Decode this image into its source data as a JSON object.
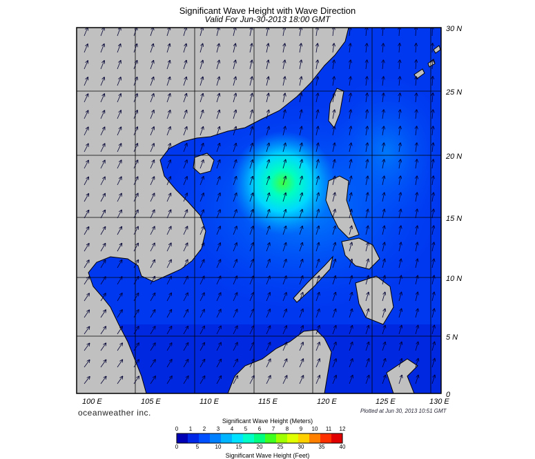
{
  "title": "Significant Wave Height with Wave Direction",
  "subtitle": "Valid For Jun-30-2013 18:00 GMT",
  "lat_labels": [
    "30 N",
    "25 N",
    "20 N",
    "15 N",
    "10 N",
    "5 N",
    "0"
  ],
  "lon_labels": [
    "100 E",
    "105 E",
    "110 E",
    "115 E",
    "120 E",
    "125 E",
    "130 E"
  ],
  "brand": "oceanweather inc.",
  "plotted": "Plotted at Jun 30, 2013 10:51 GMT",
  "colorbar": {
    "title_meters": "Significant Wave Height (Meters)",
    "title_feet": "Significant Wave Height (Feet)",
    "meters_ticks": [
      "0",
      "1",
      "2",
      "3",
      "4",
      "5",
      "6",
      "7",
      "8",
      "9",
      "10",
      "11",
      "12"
    ],
    "feet_ticks": [
      "0",
      "5",
      "10",
      "15",
      "20",
      "25",
      "30",
      "35",
      "40"
    ],
    "colors": [
      "#0000b4",
      "#0028e6",
      "#0050ff",
      "#0080ff",
      "#00b4ff",
      "#00e0ff",
      "#00ffc8",
      "#00ff80",
      "#40ff20",
      "#a0ff00",
      "#e0ff00",
      "#ffd000",
      "#ff8000",
      "#ff3000",
      "#e00000"
    ]
  },
  "colors": {
    "land": "#c0c0c0",
    "deep": "#0a1a8a",
    "ocean_low": "#0028e6",
    "ocean_mid": "#0050ff",
    "ocean_high": "#00b0ff",
    "peak": "#40ff40"
  }
}
